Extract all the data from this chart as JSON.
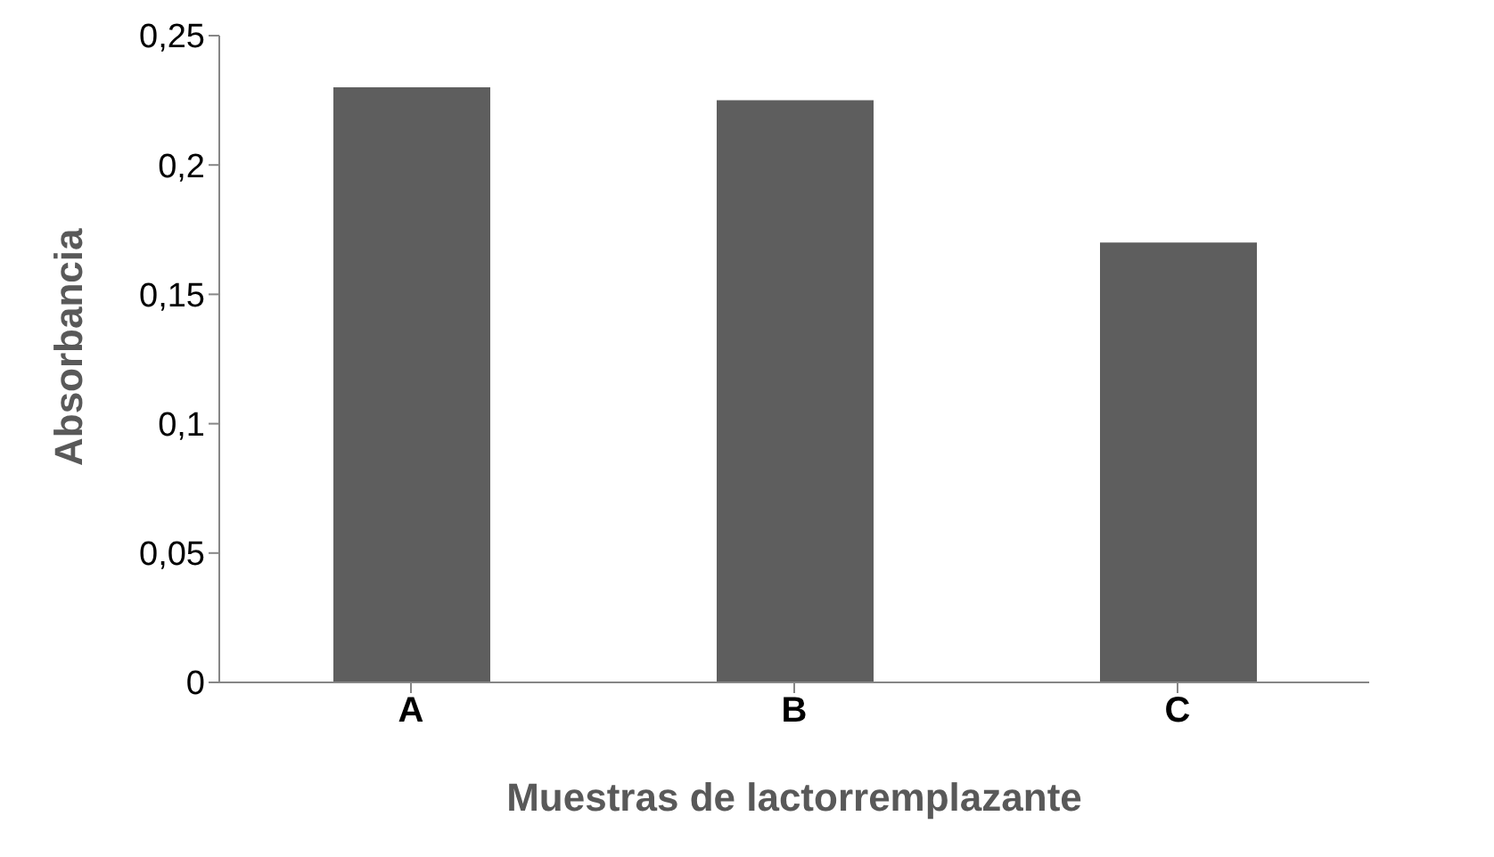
{
  "chart_data": {
    "type": "bar",
    "xlabel": "Muestras de lactorremplazante",
    "ylabel": "Absorbancia",
    "categories": [
      "A",
      "B",
      "C"
    ],
    "values": [
      0.23,
      0.225,
      0.17
    ],
    "color": "#5e5e5e",
    "ylim": [
      0,
      0.25
    ],
    "yticks": [
      {
        "value": 0,
        "label": "0"
      },
      {
        "value": 0.05,
        "label": "0,05"
      },
      {
        "value": 0.1,
        "label": "0,1"
      },
      {
        "value": 0.15,
        "label": "0,15"
      },
      {
        "value": 0.2,
        "label": "0,2"
      },
      {
        "value": 0.25,
        "label": "0,25"
      }
    ],
    "grid": false,
    "legend": false
  }
}
